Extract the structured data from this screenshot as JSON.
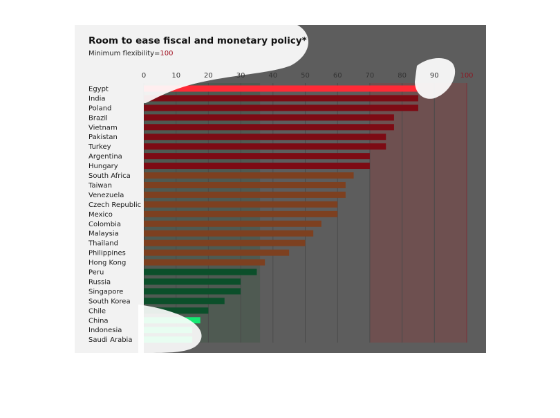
{
  "chart_data": {
    "type": "bar",
    "orientation": "horizontal",
    "title": "Room to ease fiscal and monetary policy*",
    "subtitle_prefix": "Minimum flexibility=",
    "subtitle_value": "100",
    "xlim": [
      0,
      100
    ],
    "ticks": [
      0,
      10,
      20,
      30,
      40,
      50,
      60,
      70,
      80,
      90,
      100
    ],
    "tick_labels": [
      "0",
      "10",
      "20",
      "30",
      "40",
      "50",
      "60",
      "70",
      "80",
      "90",
      "100"
    ],
    "legend": "none",
    "grid": true,
    "categories": [
      "Egypt",
      "India",
      "Poland",
      "Brazil",
      "Vietnam",
      "Pakistan",
      "Turkey",
      "Argentina",
      "Hungary",
      "South Africa",
      "Taiwan",
      "Venezuela",
      "Czech Republic",
      "Mexico",
      "Colombia",
      "Malaysia",
      "Thailand",
      "Philippines",
      "Hong Kong",
      "Peru",
      "Russia",
      "Singapore",
      "South Korea",
      "Chile",
      "China",
      "Indonesia",
      "Saudi Arabia"
    ],
    "values": [
      85,
      85,
      85,
      77.5,
      77.5,
      75,
      75,
      70,
      70,
      65,
      62.5,
      62.5,
      60,
      60,
      55,
      52.5,
      50,
      45,
      37.5,
      35,
      30,
      30,
      25,
      20,
      17.5,
      15,
      15
    ],
    "colors": {
      "high": "#7d0b14",
      "mid": "#7d4020",
      "low": "#0b4f2a",
      "high_bright": "#ff2a36",
      "low_bright": "#16e873",
      "background": "#5d5d5d",
      "band_red": "#6e5050",
      "band_mid": "#5e5e5e",
      "band_green": "#4f5a52",
      "highlight": "#ffffff",
      "subtitle_accent": "#a01020"
    }
  }
}
